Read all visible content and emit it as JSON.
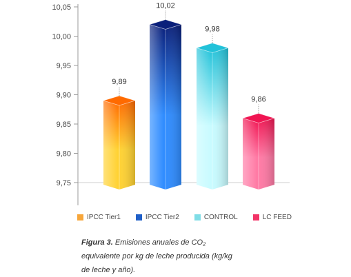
{
  "chart_data": {
    "type": "bar",
    "categories": [
      "IPCC Tier1",
      "IPCC Tier2",
      "CONTROL",
      "LC FEED"
    ],
    "values": [
      9.89,
      10.02,
      9.98,
      9.86
    ],
    "value_labels": [
      "9,89",
      "10,02",
      "9,98",
      "9,86"
    ],
    "ylim": [
      9.75,
      10.05
    ],
    "yticks": [
      9.75,
      9.8,
      9.85,
      9.9,
      9.95,
      10.0,
      10.05
    ],
    "ytick_labels": [
      "9,75",
      "9,80",
      "9,85",
      "9,90",
      "9,95",
      "10,00",
      "10,05"
    ],
    "grid": "horizontal",
    "legend": "bottom",
    "colors": {
      "IPCC Tier1": [
        "#ffd233",
        "#ff6a00"
      ],
      "IPCC Tier2": [
        "#2f8cff",
        "#0a1f7a"
      ],
      "CONTROL": [
        "#c8fbff",
        "#22c2d9"
      ],
      "LC FEED": [
        "#ff7aa5",
        "#f01552"
      ]
    },
    "legend_colors": [
      "#f7a63a",
      "#1f5fc8",
      "#7fdde6",
      "#f23467"
    ]
  },
  "caption": {
    "bold": "Figura 3.",
    "text": " Emisiones anuales de CO₂ equivalente por kg de leche producida (kg/kg de leche y año)."
  }
}
